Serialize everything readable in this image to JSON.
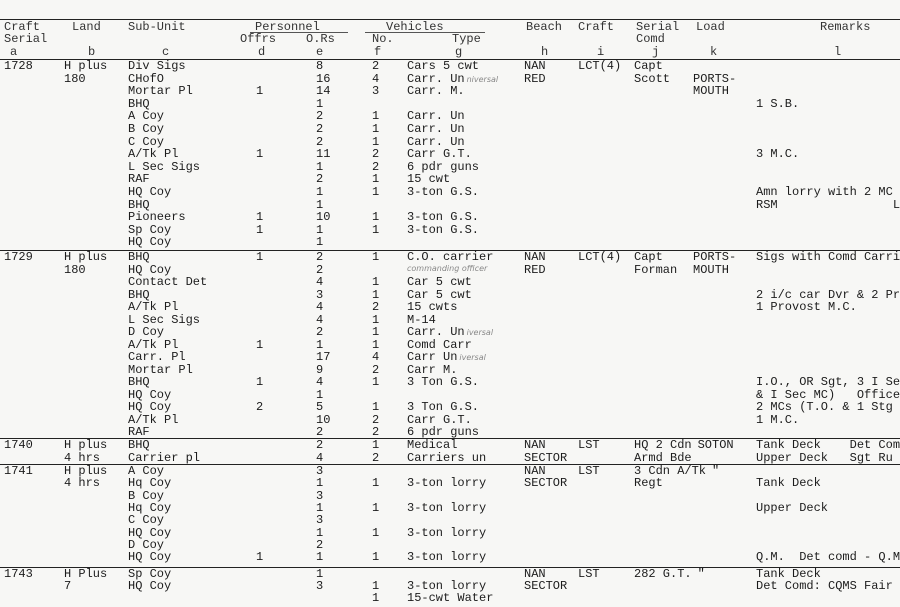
{
  "header": {
    "a": [
      "Craft",
      "Serial",
      "a"
    ],
    "b": [
      "Land",
      "",
      "b"
    ],
    "c": [
      "Sub-Unit",
      "",
      "c"
    ],
    "personnel": "Personnel",
    "d": [
      "Offrs",
      "d"
    ],
    "e": [
      "O.Rs",
      "e"
    ],
    "vehicles": "Vehicles",
    "f": [
      "No.",
      "f"
    ],
    "g": [
      "Type",
      "g"
    ],
    "h": [
      "Beach",
      "",
      "h"
    ],
    "i": [
      "Craft",
      "",
      "i"
    ],
    "j": [
      "Serial",
      "Comd",
      "j"
    ],
    "k": [
      "Load",
      "",
      "k"
    ],
    "l": [
      "Remarks",
      "",
      "l"
    ]
  },
  "blocks": [
    {
      "rows": [
        [
          "1728",
          "H plus",
          "Div Sigs",
          "",
          "8",
          "2",
          "Cars 5 cwt",
          "NAN",
          "LCT(4)",
          "Capt",
          "",
          ""
        ],
        [
          "",
          "180",
          "CHofO",
          "",
          "16",
          "4",
          "Carr. Un",
          "RED",
          "",
          "Scott",
          "PORTS-",
          ""
        ],
        [
          "",
          "",
          "Mortar Pl",
          "1",
          "14",
          "3",
          "Carr. M.",
          "",
          "",
          "",
          "MOUTH",
          ""
        ],
        [
          "",
          "",
          "BHQ",
          "",
          "1",
          "",
          "",
          "",
          "",
          "",
          "",
          "1 S.B."
        ],
        [
          "",
          "",
          "A Coy",
          "",
          "2",
          "1",
          "Carr. Un",
          "",
          "",
          "",
          "",
          ""
        ],
        [
          "",
          "",
          "B Coy",
          "",
          "2",
          "1",
          "Carr. Un",
          "",
          "",
          "",
          "",
          ""
        ],
        [
          "",
          "",
          "C Coy",
          "",
          "2",
          "1",
          "Carr. Un",
          "",
          "",
          "",
          "",
          ""
        ],
        [
          "",
          "",
          "A/Tk Pl",
          "1",
          "11",
          "2",
          "Carr G.T.",
          "",
          "",
          "",
          "",
          "3 M.C."
        ],
        [
          "",
          "",
          "L Sec Sigs",
          "",
          "1",
          "2",
          "6 pdr guns",
          "",
          "",
          "",
          "",
          ""
        ],
        [
          "",
          "",
          "RAF",
          "",
          "2",
          "1",
          "15 cwt",
          "",
          "",
          "",
          "",
          ""
        ],
        [
          "",
          "",
          "HQ Coy",
          "",
          "1",
          "1",
          "3-ton G.S.",
          "",
          "",
          "",
          "",
          "Amn lorry with 2 MC"
        ],
        [
          "",
          "",
          "BHQ",
          "",
          "1",
          "",
          "",
          "",
          "",
          "",
          "",
          "RSM                L"
        ],
        [
          "",
          "",
          "Pioneers",
          "1",
          "10",
          "1",
          "3-ton G.S.",
          "",
          "",
          "",
          "",
          ""
        ],
        [
          "",
          "",
          "Sp Coy",
          "1",
          "1",
          "1",
          "3-ton G.S.",
          "",
          "",
          "",
          "",
          ""
        ],
        [
          "",
          "",
          "HQ Coy",
          "",
          "1",
          "",
          "",
          "",
          "",
          "",
          "",
          ""
        ]
      ],
      "handwritten": [
        {
          "row": 1,
          "text": "niversal"
        }
      ]
    },
    {
      "rows": [
        [
          "1729",
          "H plus",
          "BHQ",
          "1",
          "2",
          "1",
          "C.O. carrier",
          "NAN",
          "LCT(4)",
          "Capt",
          "PORTS-",
          "Sigs with Comd Carri"
        ],
        [
          "",
          "180",
          "HQ Coy",
          "",
          "2",
          "",
          "",
          "RED",
          "",
          "Forman",
          "MOUTH",
          ""
        ],
        [
          "",
          "",
          "Contact Det",
          "",
          "4",
          "1",
          "Car 5 cwt",
          "",
          "",
          "",
          "",
          ""
        ],
        [
          "",
          "",
          "BHQ",
          "",
          "3",
          "1",
          "Car 5 cwt",
          "",
          "",
          "",
          "",
          "2 i/c car Dvr & 2 Pr"
        ],
        [
          "",
          "",
          "A/Tk Pl",
          "",
          "4",
          "2",
          "15 cwts",
          "",
          "",
          "",
          "",
          "1 Provost M.C."
        ],
        [
          "",
          "",
          "L Sec Sigs",
          "",
          "4",
          "1",
          "M-14",
          "",
          "",
          "",
          "",
          ""
        ],
        [
          "",
          "",
          "D Coy",
          "",
          "2",
          "1",
          "Carr. Un",
          "",
          "",
          "",
          "",
          ""
        ],
        [
          "",
          "",
          "A/Tk Pl",
          "1",
          "1",
          "1",
          "Comd Carr",
          "",
          "",
          "",
          "",
          ""
        ],
        [
          "",
          "",
          "Carr. Pl",
          "",
          "17",
          "4",
          "Carr Un",
          "",
          "",
          "",
          "",
          ""
        ],
        [
          "",
          "",
          "Mortar Pl",
          "",
          "9",
          "2",
          "Carr M.",
          "",
          "",
          "",
          "",
          ""
        ],
        [
          "",
          "",
          "BHQ",
          "1",
          "4",
          "1",
          "3 Ton G.S.",
          "",
          "",
          "",
          "",
          "I.O., OR Sgt, 3 I Se"
        ],
        [
          "",
          "",
          "HQ Coy",
          "",
          "1",
          "",
          "",
          "",
          "",
          "",
          "",
          "& I Sec MC)   Office"
        ],
        [
          "",
          "",
          "HQ Coy",
          "2",
          "5",
          "1",
          "3 Ton G.S.",
          "",
          "",
          "",
          "",
          "2 MCs (T.O. & 1 Stg"
        ],
        [
          "",
          "",
          "A/Tk Pl",
          "",
          "10",
          "2",
          "Carr G.T.",
          "",
          "",
          "",
          "",
          "1 M.C."
        ],
        [
          "",
          "",
          "RAF",
          "",
          "2",
          "2",
          "6 pdr guns",
          "",
          "",
          "",
          "",
          ""
        ]
      ],
      "handwritten": [
        {
          "row": 0,
          "text": "commanding officer",
          "under": true
        },
        {
          "row": 6,
          "text": "iversal"
        },
        {
          "row": 8,
          "text": "iversal"
        }
      ]
    },
    {
      "rows": [
        [
          "1740",
          "H plus",
          "BHQ",
          "",
          "2",
          "1",
          "Medical",
          "NAN",
          "LST",
          "HQ 2 Cdn",
          "SOTON",
          "Tank Deck    Det Com"
        ],
        [
          "",
          "4 hrs",
          "Carrier pl",
          "",
          "4",
          "2",
          "Carriers un",
          "SECTOR",
          "",
          "Armd Bde",
          "",
          "Upper Deck   Sgt Ru"
        ]
      ],
      "handwritten": []
    },
    {
      "rows": [
        [
          "1741",
          "H plus",
          "A Coy",
          "",
          "3",
          "",
          "",
          "NAN",
          "LST",
          "3 Cdn A/Tk",
          "\"",
          ""
        ],
        [
          "",
          "4 hrs",
          "Hq Coy",
          "",
          "1",
          "1",
          "3-ton lorry",
          "SECTOR",
          "",
          "Regt",
          "",
          "Tank Deck"
        ],
        [
          "",
          "",
          "B Coy",
          "",
          "3",
          "",
          "",
          "",
          "",
          "",
          "",
          ""
        ],
        [
          "",
          "",
          "Hq Coy",
          "",
          "1",
          "1",
          "3-ton lorry",
          "",
          "",
          "",
          "",
          "Upper Deck"
        ],
        [
          "",
          "",
          "C Coy",
          "",
          "3",
          "",
          "",
          "",
          "",
          "",
          "",
          ""
        ],
        [
          "",
          "",
          "HQ Coy",
          "",
          "1",
          "1",
          "3-ton lorry",
          "",
          "",
          "",
          "",
          ""
        ],
        [
          "",
          "",
          "D Coy",
          "",
          "2",
          "",
          "",
          "",
          "",
          "",
          "",
          ""
        ],
        [
          "",
          "",
          "HQ Coy",
          "1",
          "1",
          "1",
          "3-ton lorry",
          "",
          "",
          "",
          "",
          "Q.M.  Det comd - Q.M"
        ]
      ],
      "handwritten": []
    },
    {
      "rows": [
        [
          "1743",
          "H Plus",
          "Sp Coy",
          "",
          "1",
          "",
          "",
          "NAN",
          "LST",
          "282 G.T.",
          "\"",
          "Tank Deck"
        ],
        [
          "",
          "7",
          "HQ Coy",
          "",
          "3",
          "1",
          "3-ton lorry",
          "SECTOR",
          "",
          "",
          "",
          "Det Comd: CQMS Fair"
        ],
        [
          "",
          "",
          "",
          "",
          "",
          "1",
          "15-cwt Water",
          "",
          "",
          "",
          "",
          ""
        ]
      ],
      "handwritten": []
    }
  ]
}
